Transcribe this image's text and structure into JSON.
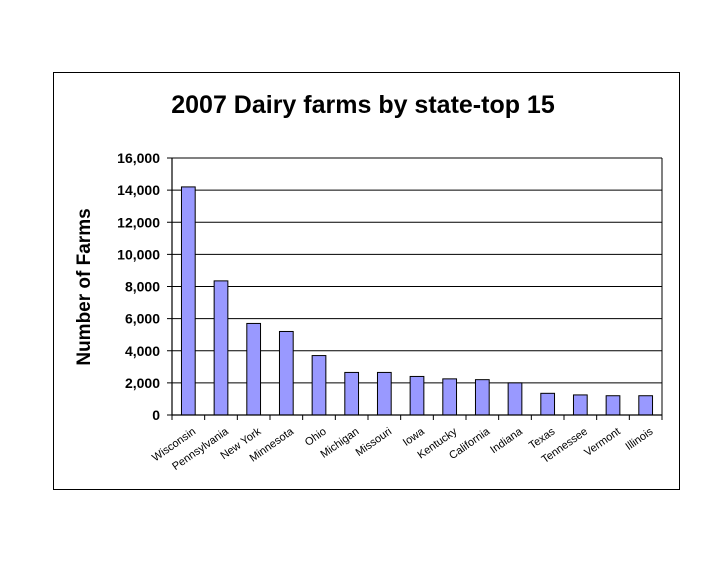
{
  "chart_data": {
    "type": "bar",
    "title": "2007 Dairy farms by state-top 15",
    "ylabel": "Number of Farms",
    "xlabel": "",
    "categories": [
      "Wisconsin",
      "Pennsylvania",
      "New York",
      "Minnesota",
      "Ohio",
      "Michigan",
      "Missouri",
      "Iowa",
      "Kentucky",
      "California",
      "Indiana",
      "Texas",
      "Tennessee",
      "Vermont",
      "Illinois"
    ],
    "values": [
      14200,
      8350,
      5700,
      5200,
      3700,
      2650,
      2650,
      2400,
      2250,
      2200,
      2000,
      1350,
      1250,
      1200,
      1200
    ],
    "ylim": [
      0,
      16000
    ],
    "yticks": [
      "0",
      "2,000",
      "4,000",
      "6,000",
      "8,000",
      "10,000",
      "12,000",
      "14,000",
      "16,000"
    ],
    "ytick_values": [
      0,
      2000,
      4000,
      6000,
      8000,
      10000,
      12000,
      14000,
      16000
    ],
    "grid": true,
    "legend": "none",
    "bar_color": "#9999ff",
    "bar_edge_color": "#000000"
  }
}
